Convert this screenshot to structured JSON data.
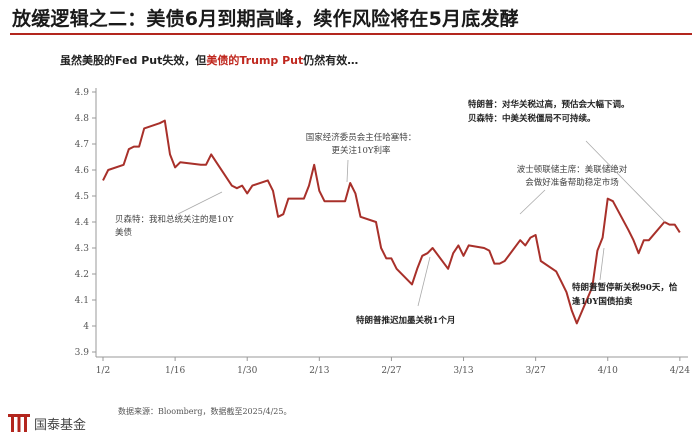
{
  "header": {
    "title": "放缓逻辑之二：美债6月到期高峰，续作风险将在5月底发酵",
    "subtitle_part1": "虽然美股的Fed Put失效，但",
    "subtitle_highlight": "美债的Trump Put",
    "subtitle_part2": "仍然有效…"
  },
  "footer": {
    "source": "数据来源：Bloomberg，数据截至2025/4/25。",
    "logo_name": "国泰基金"
  },
  "colors": {
    "line": "#a8302a",
    "accent": "#c0281f",
    "axis": "#999999"
  },
  "chart_data": {
    "type": "line",
    "ylim": [
      3.9,
      4.9
    ],
    "yticks": [
      "4.9",
      "4.8",
      "4.7",
      "4.6",
      "4.5",
      "4.4",
      "4.3",
      "4.2",
      "4.1",
      "4",
      "3.9"
    ],
    "xticks": [
      "1/2",
      "1/16",
      "1/30",
      "2/13",
      "2/27",
      "3/13",
      "3/27",
      "4/10",
      "4/24"
    ],
    "x_start": "1/2",
    "x_end": "4/25",
    "series": [
      {
        "values": [
          [
            "1/2",
            4.56
          ],
          [
            "1/3",
            4.6
          ],
          [
            "1/6",
            4.62
          ],
          [
            "1/7",
            4.68
          ],
          [
            "1/8",
            4.69
          ],
          [
            "1/9",
            4.69
          ],
          [
            "1/10",
            4.76
          ],
          [
            "1/13",
            4.78
          ],
          [
            "1/14",
            4.79
          ],
          [
            "1/15",
            4.66
          ],
          [
            "1/16",
            4.61
          ],
          [
            "1/17",
            4.63
          ],
          [
            "1/21",
            4.62
          ],
          [
            "1/22",
            4.62
          ],
          [
            "1/23",
            4.66
          ],
          [
            "1/24",
            4.63
          ],
          [
            "1/27",
            4.54
          ],
          [
            "1/28",
            4.53
          ],
          [
            "1/29",
            4.54
          ],
          [
            "1/30",
            4.51
          ],
          [
            "1/31",
            4.54
          ],
          [
            "2/3",
            4.56
          ],
          [
            "2/4",
            4.52
          ],
          [
            "2/5",
            4.42
          ],
          [
            "2/6",
            4.43
          ],
          [
            "2/7",
            4.49
          ],
          [
            "2/10",
            4.49
          ],
          [
            "2/11",
            4.54
          ],
          [
            "2/12",
            4.62
          ],
          [
            "2/13",
            4.52
          ],
          [
            "2/14",
            4.48
          ],
          [
            "2/18",
            4.48
          ],
          [
            "2/19",
            4.55
          ],
          [
            "2/20",
            4.51
          ],
          [
            "2/21",
            4.42
          ],
          [
            "2/24",
            4.4
          ],
          [
            "2/25",
            4.3
          ],
          [
            "2/26",
            4.26
          ],
          [
            "2/27",
            4.26
          ],
          [
            "2/28",
            4.22
          ],
          [
            "3/3",
            4.16
          ],
          [
            "3/4",
            4.22
          ],
          [
            "3/5",
            4.27
          ],
          [
            "3/6",
            4.28
          ],
          [
            "3/7",
            4.3
          ],
          [
            "3/10",
            4.22
          ],
          [
            "3/11",
            4.28
          ],
          [
            "3/12",
            4.31
          ],
          [
            "3/13",
            4.27
          ],
          [
            "3/14",
            4.31
          ],
          [
            "3/17",
            4.3
          ],
          [
            "3/18",
            4.29
          ],
          [
            "3/19",
            4.24
          ],
          [
            "3/20",
            4.24
          ],
          [
            "3/21",
            4.25
          ],
          [
            "3/24",
            4.33
          ],
          [
            "3/25",
            4.31
          ],
          [
            "3/26",
            4.34
          ],
          [
            "3/27",
            4.35
          ],
          [
            "3/28",
            4.25
          ],
          [
            "3/31",
            4.21
          ],
          [
            "4/1",
            4.17
          ],
          [
            "4/2",
            4.13
          ],
          [
            "4/3",
            4.06
          ],
          [
            "4/4",
            4.01
          ],
          [
            "4/7",
            4.15
          ],
          [
            "4/8",
            4.29
          ],
          [
            "4/9",
            4.34
          ],
          [
            "4/10",
            4.49
          ],
          [
            "4/11",
            4.48
          ],
          [
            "4/14",
            4.37
          ],
          [
            "4/15",
            4.33
          ],
          [
            "4/16",
            4.28
          ],
          [
            "4/17",
            4.33
          ],
          [
            "4/18",
            4.33
          ],
          [
            "4/21",
            4.4
          ],
          [
            "4/22",
            4.39
          ],
          [
            "4/23",
            4.39
          ],
          [
            "4/24",
            4.36
          ]
        ]
      }
    ],
    "annotations": [
      {
        "id": "a1",
        "text": [
          "贝森特：我和总统关注的是10Y",
          "美债"
        ],
        "color": "#444444",
        "bold": false
      },
      {
        "id": "a2",
        "text": [
          "国家经济委员会主任哈塞特：",
          "更关注10Y利率"
        ],
        "color": "#444444",
        "bold": false
      },
      {
        "id": "a3",
        "text": [
          "特朗普推迟加墨关税1个月"
        ],
        "color": "#222222",
        "bold": true
      },
      {
        "id": "a4",
        "text": [
          "波士顿联储主席：美联储绝对",
          "会做好准备帮助稳定市场"
        ],
        "color": "#444444",
        "bold": false
      },
      {
        "id": "a5",
        "text": [
          "特朗普：对华关税过高，预估会大幅下调。",
          "贝森特：中美关税僵局不可持续。"
        ],
        "color": "#222222",
        "bold": true
      },
      {
        "id": "a6",
        "text": [
          "特朗普暂停新关税90天，恰",
          "逢10Y国债拍卖"
        ],
        "color": "#222222",
        "bold": true
      }
    ]
  }
}
